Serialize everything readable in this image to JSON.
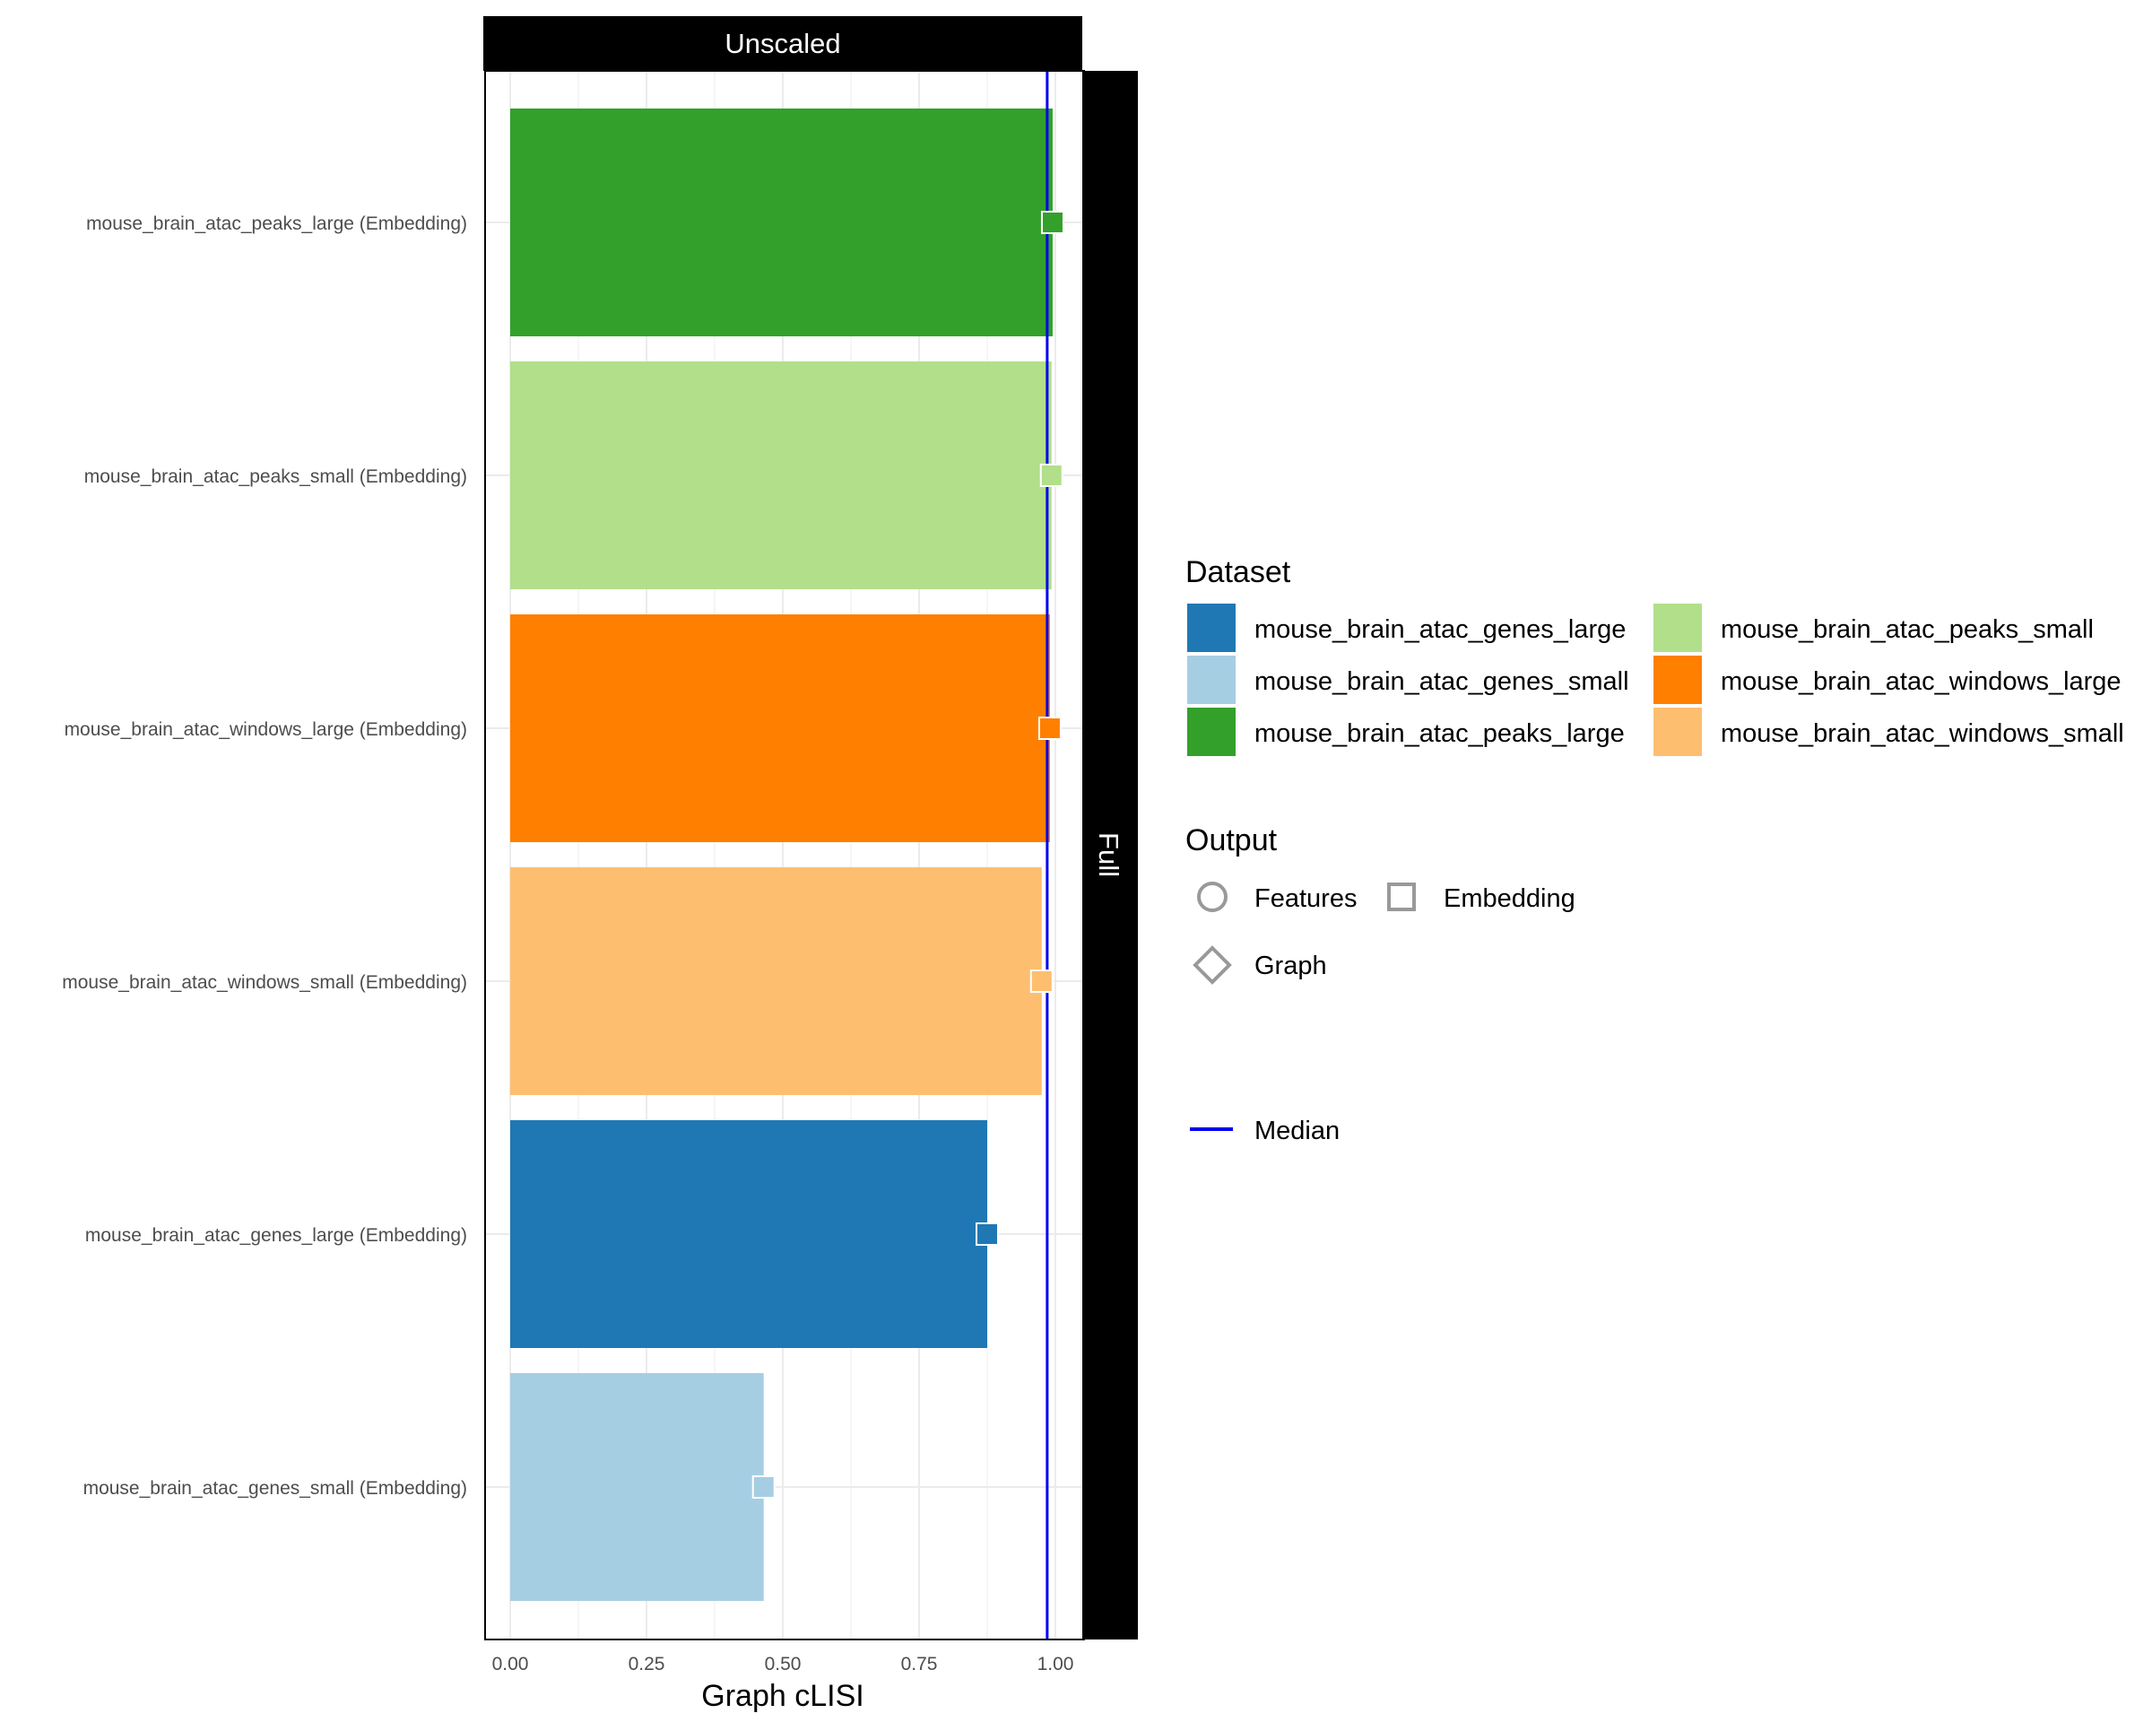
{
  "chart_data": {
    "type": "bar",
    "orientation": "horizontal",
    "facet_top": "Unscaled",
    "facet_right": "Full",
    "xlabel": "Graph cLISI",
    "ylabel": "",
    "xlim": [
      0,
      1.05
    ],
    "x_ticks": [
      "0.00",
      "0.25",
      "0.50",
      "0.75",
      "1.00"
    ],
    "x_tick_values": [
      0,
      0.25,
      0.5,
      0.75,
      1.0
    ],
    "median": 0.985,
    "grid": true,
    "categories": [
      "mouse_brain_atac_peaks_large (Embedding)",
      "mouse_brain_atac_peaks_small (Embedding)",
      "mouse_brain_atac_windows_large (Embedding)",
      "mouse_brain_atac_windows_small (Embedding)",
      "mouse_brain_atac_genes_large (Embedding)",
      "mouse_brain_atac_genes_small (Embedding)"
    ],
    "values": [
      0.995,
      0.993,
      0.99,
      0.975,
      0.875,
      0.465
    ],
    "datasets": [
      "mouse_brain_atac_peaks_large",
      "mouse_brain_atac_peaks_small",
      "mouse_brain_atac_windows_large",
      "mouse_brain_atac_windows_small",
      "mouse_brain_atac_genes_large",
      "mouse_brain_atac_genes_small"
    ],
    "outputs": [
      "Embedding",
      "Embedding",
      "Embedding",
      "Embedding",
      "Embedding",
      "Embedding"
    ],
    "legend_placement": "right",
    "legend": {
      "dataset_title": "Dataset",
      "dataset_entries": [
        {
          "label": "mouse_brain_atac_genes_large",
          "color": "#1f78b4"
        },
        {
          "label": "mouse_brain_atac_genes_small",
          "color": "#a6cee3"
        },
        {
          "label": "mouse_brain_atac_peaks_large",
          "color": "#33a02c"
        },
        {
          "label": "mouse_brain_atac_peaks_small",
          "color": "#b2df8a"
        },
        {
          "label": "mouse_brain_atac_windows_large",
          "color": "#ff7f00"
        },
        {
          "label": "mouse_brain_atac_windows_small",
          "color": "#fdbf6f"
        }
      ],
      "output_title": "Output",
      "output_entries": [
        {
          "label": "Features",
          "shape": "circle"
        },
        {
          "label": "Embedding",
          "shape": "square"
        },
        {
          "label": "Graph",
          "shape": "diamond"
        }
      ],
      "median_label": "Median",
      "median_color": "#0000ee"
    }
  }
}
